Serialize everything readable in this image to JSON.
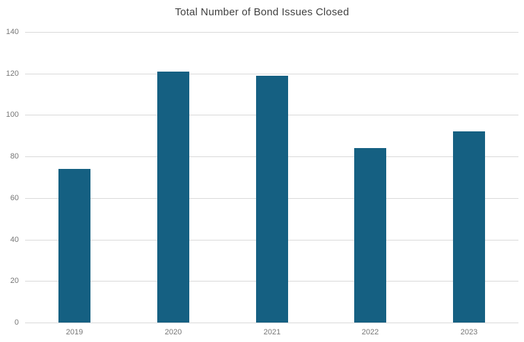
{
  "chart_data": {
    "type": "bar",
    "title": "Total Number of Bond Issues Closed",
    "categories": [
      "2019",
      "2020",
      "2021",
      "2022",
      "2023"
    ],
    "values": [
      74,
      121,
      119,
      84,
      92
    ],
    "xlabel": "",
    "ylabel": "",
    "ylim": [
      0,
      140
    ],
    "yticks": [
      0,
      20,
      40,
      60,
      80,
      100,
      120,
      140
    ],
    "grid": true,
    "legend": false,
    "colors": {
      "bar": "#156082",
      "gridline": "#d9d9d9",
      "tick_label": "#757575",
      "title": "#404040",
      "background": "#ffffff"
    }
  }
}
